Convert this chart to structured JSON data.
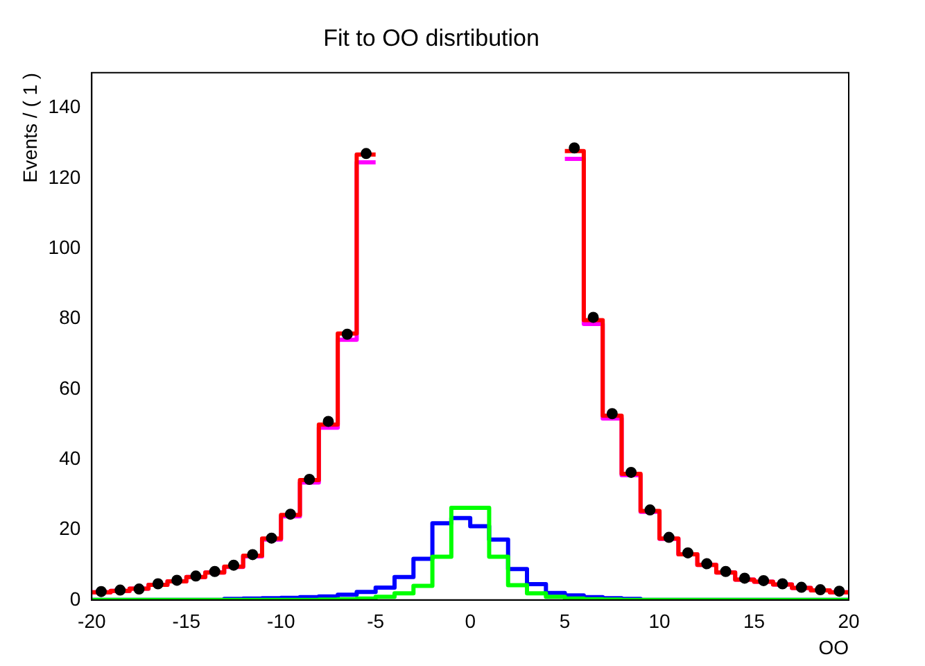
{
  "chart_data": {
    "type": "histogram",
    "title": "Fit to OO disrtibution",
    "xlabel": "OO",
    "ylabel": "Events / ( 1 )",
    "bins": [
      -20,
      -19,
      -18,
      -17,
      -16,
      -15,
      -14,
      -13,
      -12,
      -11,
      -10,
      -9,
      -8,
      -7,
      -6,
      -5,
      -4,
      -3,
      -2,
      -1,
      0,
      1,
      2,
      3,
      4,
      5,
      6,
      7,
      8,
      9,
      10,
      11,
      12,
      13,
      14,
      15,
      16,
      17,
      18,
      19,
      20
    ],
    "xlim": [
      -20,
      20
    ],
    "xticks": [
      -20,
      -15,
      -10,
      -5,
      0,
      5,
      10,
      15,
      20
    ],
    "ylim": [
      0,
      150
    ],
    "yticks": [
      0,
      20,
      40,
      60,
      80,
      100,
      120,
      140
    ],
    "grid": false,
    "legend": false,
    "series": [
      {
        "color": "#ff00ff",
        "bins": [
          -20,
          -19,
          -18,
          -17,
          -16,
          -15,
          -14,
          -13,
          -12,
          -11,
          -10,
          -9,
          -8,
          -7,
          -6,
          -5
        ],
        "values": [
          2.2,
          2.6,
          3.2,
          4.3,
          5.3,
          6.5,
          7.8,
          9.4,
          12.4,
          17.2,
          23.8,
          33.4,
          49,
          74,
          124.5
        ]
      },
      {
        "color": "#ff00ff",
        "bins": [
          5,
          6,
          7,
          8,
          9,
          10,
          11,
          12,
          13,
          14,
          15,
          16,
          17,
          18,
          19,
          20
        ],
        "values": [
          125.5,
          78.5,
          51.6,
          35.5,
          25.1,
          17.4,
          13,
          10,
          7.8,
          5.8,
          5.2,
          4.4,
          3.4,
          2.7,
          2.2
        ]
      },
      {
        "color": "#ff0000",
        "bins": [
          -20,
          -19,
          -18,
          -17,
          -16,
          -15,
          -14,
          -13,
          -12,
          -11,
          -10,
          -9,
          -8,
          -7,
          -6,
          -5
        ],
        "values": [
          2.2,
          2.6,
          3.2,
          4.3,
          5.3,
          6.5,
          7.8,
          9.5,
          12.6,
          17.5,
          24.2,
          34.1,
          49.9,
          75.8,
          126.7
        ]
      },
      {
        "color": "#ff0000",
        "bins": [
          5,
          6,
          7,
          8,
          9,
          10,
          11,
          12,
          13,
          14,
          15,
          16,
          17,
          18,
          19,
          20
        ],
        "values": [
          127.7,
          79.6,
          52.4,
          35.9,
          25.3,
          17.5,
          13,
          10,
          7.8,
          5.8,
          5.2,
          4.4,
          3.4,
          2.7,
          2.2
        ]
      },
      {
        "color": "#0000ff",
        "values": [
          0,
          0,
          0,
          0,
          0,
          0,
          0,
          0.3,
          0.4,
          0.5,
          0.6,
          0.8,
          1,
          1.5,
          2.3,
          3.5,
          6.5,
          11.7,
          21.8,
          23.3,
          21,
          17.2,
          8.8,
          4.5,
          2,
          1.3,
          0.8,
          0.5,
          0.3,
          0,
          0,
          0,
          0,
          0,
          0,
          0,
          0,
          0,
          0,
          0
        ]
      },
      {
        "color": "#00ff00",
        "values": [
          0,
          0,
          0,
          0,
          0,
          0,
          0,
          0,
          0,
          0,
          0,
          0,
          0.1,
          0.2,
          0.4,
          0.9,
          1.9,
          4,
          12.3,
          26.2,
          26.2,
          12.3,
          4.2,
          1.9,
          0.9,
          0.4,
          0.2,
          0.1,
          0,
          0,
          0,
          0,
          0,
          0,
          0,
          0,
          0,
          0,
          0,
          0
        ]
      },
      {
        "type": "scatter",
        "color": "#000000",
        "marker": "circle",
        "x": [
          -19.5,
          -18.5,
          -17.5,
          -16.5,
          -15.5,
          -14.5,
          -13.5,
          -12.5,
          -11.5,
          -10.5,
          -9.5,
          -8.5,
          -7.5,
          -6.5,
          -5.5,
          -4.5,
          -3.5,
          -2.5,
          -1.5,
          -0.5,
          0.5,
          1.5,
          2.5,
          3.5,
          4.5,
          5.5,
          6.5,
          7.5,
          8.5,
          9.5,
          10.5,
          11.5,
          12.5,
          13.5,
          14.5,
          15.5,
          16.5,
          17.5,
          18.5,
          19.5
        ],
        "values": [
          2.4,
          2.8,
          3.1,
          4.6,
          5.6,
          6.8,
          8.1,
          9.9,
          12.9,
          17.6,
          24.4,
          34.3,
          50.8,
          75.6,
          127,
          null,
          null,
          null,
          null,
          null,
          null,
          null,
          null,
          null,
          null,
          128.6,
          80.4,
          53,
          36.3,
          25.6,
          17.8,
          13.4,
          10.3,
          8.1,
          6.2,
          5.5,
          4.6,
          3.6,
          2.9,
          2.5
        ]
      }
    ]
  }
}
